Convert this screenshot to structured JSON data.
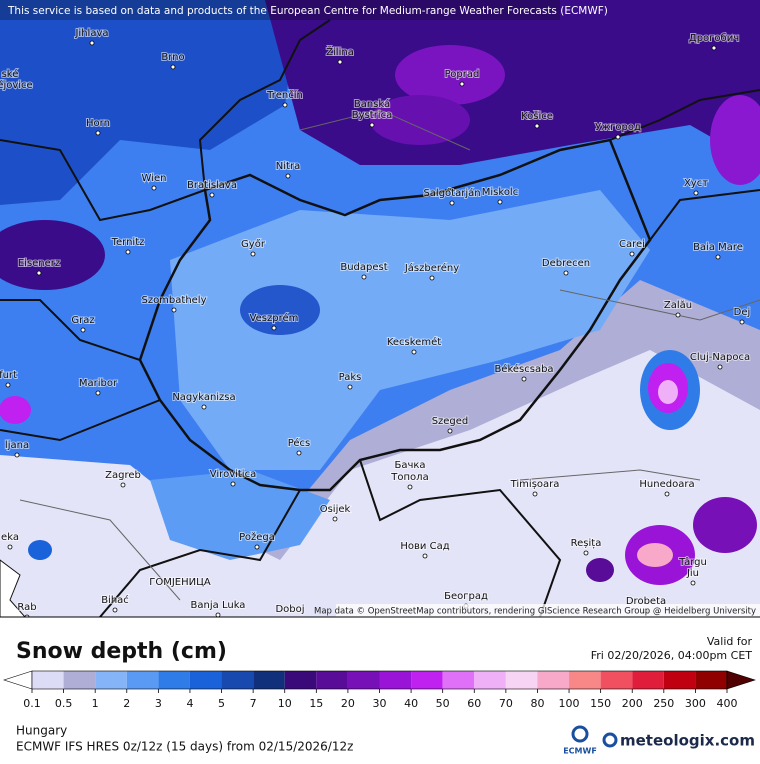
{
  "notice": "This service is based on data and products of the European Centre for Medium-range Weather Forecasts (ECMWF)",
  "attribution": "Map data © OpenStreetMap contributors, rendering GIScience Research Group @ Heidelberg University",
  "cities": [
    "ské",
    "ějovice",
    "Jihlava",
    "Brno",
    "Žilina",
    "Poprad",
    "Дрогобич",
    "Trenčín",
    "Banská",
    "Bystrica",
    "Košice",
    "Ужгород",
    "Horn",
    "Nitra",
    "Wien",
    "Bratislava",
    "Хуст",
    "Salgótarján",
    "Miskolc",
    "Ternitz",
    "Győr",
    "Carei",
    "Baia Mare",
    "Eisenerz",
    "Budapest",
    "Jászberény",
    "Debrecen",
    "Szombathely",
    "Zalău",
    "Graz",
    "Veszprém",
    "Dej",
    "Kecskemét",
    "Cluj-Napoca",
    "furt",
    "Maribor",
    "Paks",
    "Békéscsaba",
    "Nagykanizsa",
    "Szeged",
    "Pécs",
    "ljana",
    "Бачка",
    "Топола",
    "Zagreb",
    "Virovitica",
    "Timișoara",
    "Hunedoara",
    "Osijek",
    "eka",
    "Požega",
    "Reșița",
    "Нови Сад",
    "Târgu",
    "Jiu",
    "ГОМЈЕНИЦА",
    "Bihać",
    "Banja Luka",
    "Doboj",
    "Београд",
    "Drobeta",
    "Rab"
  ],
  "legend": {
    "title": "Snow depth (cm)",
    "valid_label": "Valid for",
    "valid_time": "Fri 02/20/2026, 04:00pm CET",
    "ticks": [
      0.1,
      0.5,
      1,
      2,
      3,
      4,
      5,
      7,
      10,
      15,
      20,
      30,
      40,
      50,
      60,
      70,
      80,
      100,
      150,
      200,
      250,
      300,
      400
    ],
    "under_color": "#ffffff",
    "colors": [
      "#dcdcf6",
      "#aeaed6",
      "#86b4f8",
      "#5a9af4",
      "#2f7ce8",
      "#1a62da",
      "#1749ae",
      "#10307c",
      "#3a0a7a",
      "#580c98",
      "#7810b8",
      "#9a14d8",
      "#c020f0",
      "#e070f8",
      "#f0b0f8",
      "#f8d4f4",
      "#f8a8c8",
      "#f88888",
      "#f05060",
      "#e01e3c",
      "#c00010",
      "#900000"
    ],
    "over_color": "#500000"
  },
  "region": "Hungary",
  "model": "ECMWF IFS HRES 0z/12z (15 days) from 02/15/2026/12z",
  "ecmwf_logo": "ECMWF",
  "brand": "meteologix.com"
}
